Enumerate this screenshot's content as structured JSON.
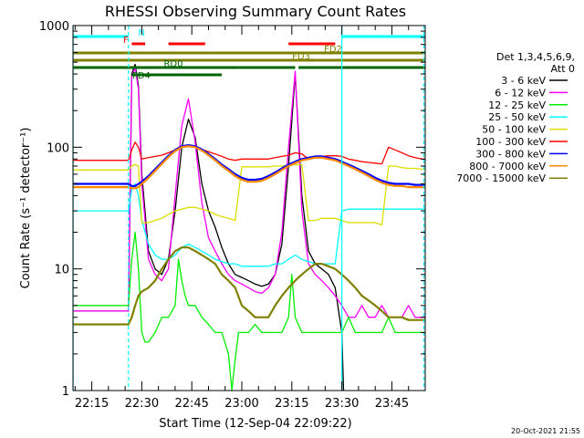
{
  "chart_data": {
    "type": "line",
    "title": "RHESSI Observing Summary Count Rates",
    "xlabel": "Start Time (12-Sep-04 22:09:22)",
    "ylabel": "Count Rate (s⁻¹ detector⁻¹)",
    "yscale": "log",
    "ylim": [
      1,
      1000
    ],
    "xlim_min": [
      9.37,
      115.0
    ],
    "x_ticks": [
      {
        "min": 15,
        "label": "22:15"
      },
      {
        "min": 30,
        "label": "22:30"
      },
      {
        "min": 45,
        "label": "22:45"
      },
      {
        "min": 60,
        "label": "23:00"
      },
      {
        "min": 75,
        "label": "23:15"
      },
      {
        "min": 90,
        "label": "23:30"
      },
      {
        "min": 105,
        "label": "23:45"
      }
    ],
    "y_ticks": [
      {
        "value": 1,
        "label": "1"
      },
      {
        "value": 10,
        "label": "10"
      },
      {
        "value": 100,
        "label": "100"
      },
      {
        "value": 1000,
        "label": "1000"
      }
    ],
    "legend_header": [
      "Det 1,3,4,5,6,9,",
      "Att 0"
    ],
    "legend_position": "right",
    "series": [
      {
        "name": "3 - 6 keV",
        "color": "#000000",
        "x": [
          9.4,
          26,
          27,
          28,
          29,
          30,
          32,
          34,
          36,
          38,
          40,
          42,
          44,
          46,
          48,
          50,
          52,
          54,
          56,
          58,
          60,
          62,
          64,
          66,
          68,
          70,
          72,
          74,
          76,
          78,
          80,
          82,
          84,
          86,
          88,
          90,
          90.5
        ],
        "y": [
          4.5,
          4.5,
          400,
          480,
          320,
          60,
          14,
          10,
          9,
          12,
          30,
          100,
          170,
          120,
          50,
          30,
          22,
          15,
          11,
          9,
          8.5,
          8,
          7.5,
          7.2,
          7.5,
          9,
          16,
          70,
          400,
          40,
          14,
          11,
          10,
          9,
          7,
          3,
          1
        ]
      },
      {
        "name": "6 - 12 keV",
        "color": "#ff00ff",
        "x": [
          9.4,
          26,
          27,
          28,
          29,
          30,
          32,
          34,
          36,
          38,
          40,
          42,
          44,
          46,
          48,
          50,
          52,
          54,
          56,
          58,
          60,
          62,
          64,
          66,
          68,
          70,
          72,
          74,
          76,
          78,
          80,
          82,
          84,
          86,
          88,
          90,
          92,
          94,
          96,
          98,
          100,
          102,
          104,
          106,
          108,
          110,
          112,
          114,
          115
        ],
        "y": [
          4.5,
          4.5,
          380,
          450,
          300,
          50,
          12,
          9,
          8,
          10,
          40,
          150,
          250,
          110,
          35,
          18,
          14,
          11,
          9,
          8,
          7.5,
          7,
          6.5,
          6.3,
          7,
          9,
          20,
          100,
          420,
          30,
          11,
          9,
          8,
          7,
          6,
          5,
          4,
          4,
          5,
          4,
          4,
          5,
          4,
          4,
          4,
          5,
          4,
          4,
          4
        ]
      },
      {
        "name": "12 - 25 keV",
        "color": "#00ee00",
        "x": [
          9.4,
          14,
          18,
          22,
          26,
          27,
          28,
          29,
          30,
          31,
          32,
          34,
          36,
          38,
          40,
          41,
          42,
          43,
          44,
          46,
          48,
          50,
          52,
          54,
          56,
          57,
          58,
          59,
          60,
          62,
          64,
          66,
          68,
          70,
          72,
          74,
          75,
          76,
          78,
          80,
          82,
          84,
          86,
          88,
          90,
          92,
          94,
          96,
          98,
          100,
          102,
          104,
          106,
          108,
          110,
          112,
          114,
          115
        ],
        "y": [
          5,
          5,
          5,
          5,
          5,
          12,
          20,
          10,
          3,
          2.5,
          2.5,
          3,
          4,
          4,
          5,
          12,
          8,
          6,
          5,
          5,
          4,
          3.5,
          3,
          3,
          2,
          1,
          1.8,
          3,
          3,
          3,
          3.5,
          3,
          3,
          3,
          3,
          4,
          9,
          4,
          3,
          3,
          3,
          3,
          3,
          3,
          3,
          4,
          3,
          3,
          3,
          3,
          3,
          4,
          3,
          3,
          3,
          3,
          3,
          3
        ]
      },
      {
        "name": "25 - 50 keV",
        "color": "#00ffff",
        "x": [
          9.4,
          26,
          27,
          28,
          29,
          30,
          32,
          34,
          36,
          38,
          40,
          42,
          44,
          46,
          48,
          50,
          52,
          54,
          56,
          58,
          60,
          62,
          64,
          66,
          68,
          70,
          72,
          74,
          76,
          78,
          80,
          82,
          84,
          86,
          88,
          90,
          92,
          94,
          96,
          98,
          100,
          102,
          104,
          106,
          108,
          110,
          112,
          114,
          115
        ],
        "y": [
          30,
          30,
          45,
          50,
          40,
          25,
          16,
          13,
          12,
          12,
          13,
          15,
          16,
          15,
          14,
          13,
          12,
          11.5,
          11,
          11,
          10.5,
          10.5,
          10.5,
          10.5,
          10.5,
          11,
          11,
          12,
          13,
          12,
          11.5,
          11,
          11,
          11,
          11,
          30,
          31,
          31,
          31,
          31,
          31,
          31,
          31,
          31,
          31,
          31,
          31,
          31,
          31
        ]
      },
      {
        "name": "50 - 100 keV",
        "color": "#dddd00",
        "x": [
          9.4,
          26,
          27,
          28,
          29,
          30,
          32,
          34,
          36,
          38,
          40,
          42,
          44,
          46,
          48,
          50,
          52,
          54,
          56,
          58,
          60,
          62,
          64,
          66,
          68,
          70,
          72,
          74,
          76,
          78,
          80,
          82,
          84,
          86,
          88,
          90,
          92,
          94,
          96,
          98,
          100,
          102,
          104,
          106,
          108,
          110,
          112,
          114,
          115
        ],
        "y": [
          65,
          65,
          70,
          72,
          70,
          24,
          24,
          25,
          26,
          28,
          30,
          31,
          32,
          32,
          31,
          30,
          28,
          27,
          26,
          25,
          69,
          69,
          69,
          69,
          69,
          70,
          70,
          71,
          72,
          72,
          25,
          25,
          26,
          26,
          26,
          25,
          24,
          24,
          24,
          24,
          24,
          23,
          70,
          70,
          68,
          67,
          67,
          66,
          66
        ]
      },
      {
        "name": "100 - 300 keV",
        "color": "#ff0000",
        "x": [
          9.4,
          26,
          27,
          28,
          29,
          30,
          32,
          34,
          36,
          38,
          40,
          42,
          44,
          46,
          48,
          50,
          52,
          54,
          56,
          58,
          60,
          62,
          64,
          66,
          68,
          70,
          72,
          74,
          76,
          78,
          80,
          82,
          84,
          86,
          88,
          90,
          92,
          94,
          96,
          98,
          100,
          102,
          104,
          106,
          108,
          110,
          112,
          114,
          115
        ],
        "y": [
          78,
          78,
          95,
          110,
          100,
          80,
          82,
          84,
          86,
          90,
          95,
          100,
          102,
          100,
          96,
          92,
          88,
          84,
          80,
          78,
          80,
          80,
          80,
          80,
          80,
          82,
          84,
          86,
          90,
          88,
          80,
          82,
          84,
          85,
          85,
          84,
          80,
          78,
          76,
          75,
          74,
          73,
          100,
          95,
          90,
          85,
          82,
          80,
          80
        ]
      },
      {
        "name": "300 - 800 keV",
        "color": "#0000ff",
        "x": [
          9.4,
          26,
          27,
          28,
          29,
          30,
          32,
          34,
          36,
          38,
          40,
          42,
          44,
          46,
          48,
          50,
          52,
          54,
          56,
          58,
          60,
          62,
          64,
          66,
          68,
          70,
          72,
          74,
          76,
          78,
          80,
          82,
          84,
          86,
          88,
          90,
          92,
          94,
          96,
          98,
          100,
          102,
          104,
          106,
          108,
          110,
          112,
          114,
          115
        ],
        "y": [
          50,
          50,
          48,
          48,
          50,
          52,
          58,
          66,
          75,
          85,
          95,
          102,
          104,
          102,
          96,
          88,
          80,
          72,
          66,
          60,
          56,
          54,
          54,
          55,
          58,
          62,
          67,
          72,
          76,
          80,
          82,
          84,
          84,
          82,
          80,
          76,
          72,
          68,
          64,
          60,
          56,
          53,
          51,
          50,
          50,
          50,
          49,
          49,
          49
        ]
      },
      {
        "name": "800 - 7000 keV",
        "color": "#ff8800",
        "x": [
          9.4,
          26,
          27,
          28,
          29,
          30,
          32,
          34,
          36,
          38,
          40,
          42,
          44,
          46,
          48,
          50,
          52,
          54,
          56,
          58,
          60,
          62,
          64,
          66,
          68,
          70,
          72,
          74,
          76,
          78,
          80,
          82,
          84,
          86,
          88,
          90,
          92,
          94,
          96,
          98,
          100,
          102,
          104,
          106,
          108,
          110,
          112,
          114,
          115
        ],
        "y": [
          47,
          47,
          46,
          46,
          47,
          50,
          56,
          64,
          73,
          83,
          93,
          100,
          102,
          100,
          94,
          86,
          78,
          70,
          64,
          58,
          54,
          52,
          52,
          53,
          56,
          60,
          65,
          70,
          74,
          78,
          80,
          82,
          82,
          80,
          78,
          74,
          70,
          66,
          62,
          58,
          54,
          51,
          49,
          48,
          48,
          47,
          47,
          47,
          47
        ]
      },
      {
        "name": "7000 - 15000 keV",
        "color": "#808000",
        "x": [
          9.4,
          26,
          27,
          28,
          29,
          30,
          32,
          34,
          36,
          38,
          40,
          42,
          44,
          46,
          48,
          50,
          52,
          54,
          56,
          58,
          60,
          62,
          64,
          66,
          68,
          70,
          72,
          74,
          76,
          78,
          80,
          82,
          84,
          86,
          88,
          90,
          92,
          94,
          96,
          98,
          100,
          102,
          104,
          106,
          108,
          110,
          112,
          114,
          115
        ],
        "y": [
          3.5,
          3.5,
          4,
          5,
          6,
          6.5,
          7,
          8,
          10,
          12,
          14,
          15,
          15,
          14,
          13,
          12,
          11,
          9,
          8,
          7,
          5,
          4.5,
          4,
          4,
          4,
          5,
          6,
          7,
          8,
          9,
          10,
          11,
          11,
          10.5,
          10,
          9,
          8,
          7,
          6,
          5.5,
          5,
          4.5,
          4,
          4,
          4,
          3.8,
          3.8,
          3.8,
          3.8
        ]
      }
    ],
    "flags": [
      {
        "label": "N",
        "color": "#00ffff",
        "segments": [
          [
            9.4,
            26
          ],
          [
            90,
            115
          ]
        ]
      },
      {
        "label": "F",
        "color": "#ff0000",
        "segments": [
          [
            27,
            31
          ],
          [
            38,
            49
          ],
          [
            74,
            88
          ]
        ]
      },
      {
        "label": "FD2",
        "color": "#808000",
        "segments": [
          [
            9.4,
            115
          ]
        ]
      },
      {
        "label": "FD3",
        "color": "#808000",
        "segments": [
          [
            9.4,
            79
          ],
          [
            79,
            115
          ]
        ]
      },
      {
        "label": "RD0",
        "color": "#006400",
        "segments": [
          [
            9.4,
            36
          ],
          [
            36,
            59
          ],
          [
            59,
            76
          ],
          [
            77,
            93
          ],
          [
            93,
            115
          ]
        ]
      },
      {
        "label": "FD4",
        "color": "#006400",
        "segments": [
          [
            27,
            54
          ]
        ]
      }
    ],
    "saa_lines_min": [
      9.4,
      26,
      90,
      114.6
    ]
  },
  "footer": {
    "timestamp": "20-Oct-2021 21:55"
  }
}
